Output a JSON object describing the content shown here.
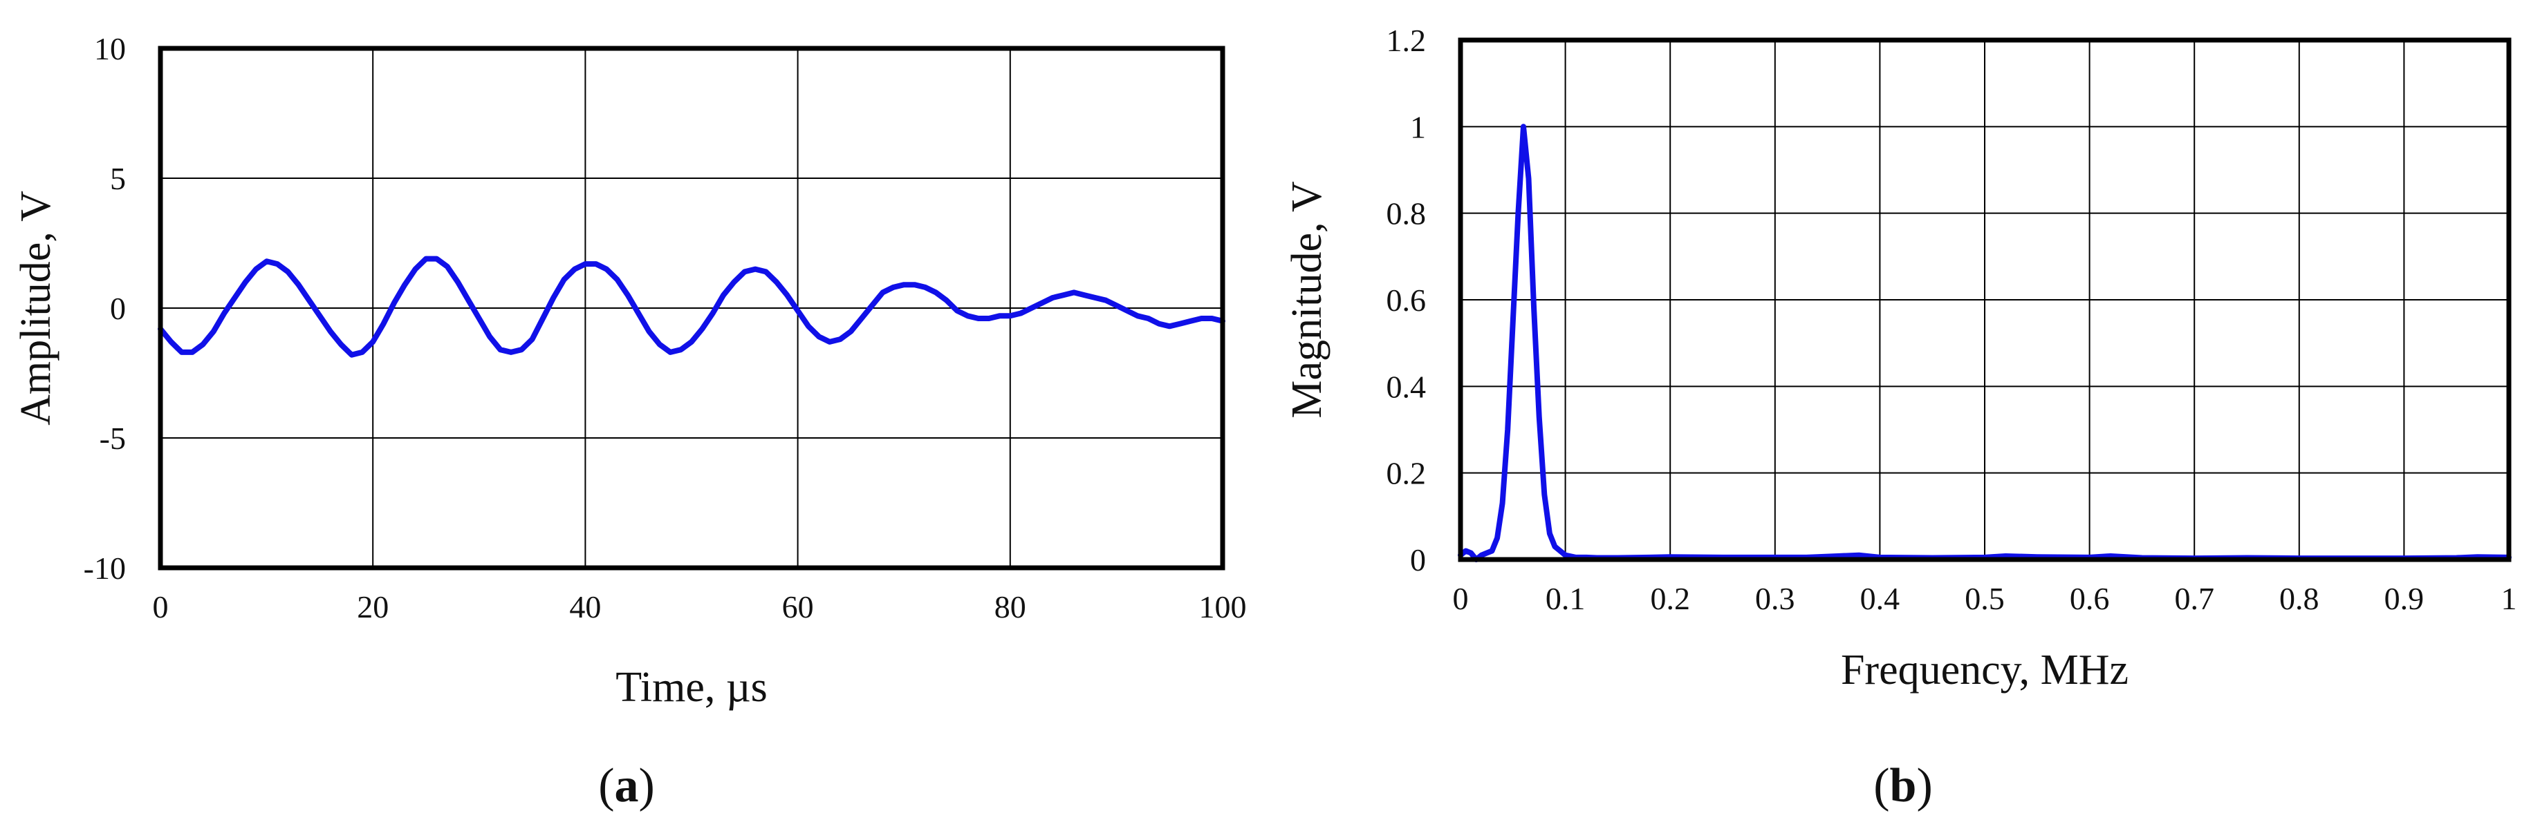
{
  "chart_data": [
    {
      "type": "line",
      "panel_label": "a",
      "title": "",
      "xlabel": "Time, µs",
      "ylabel": "Amplitude, V",
      "xlim": [
        0,
        100
      ],
      "ylim": [
        -10,
        10
      ],
      "x_ticks": [
        0,
        20,
        40,
        60,
        80,
        100
      ],
      "x_tick_labels": [
        "0",
        "20",
        "40",
        "60",
        "80",
        "100"
      ],
      "y_ticks": [
        -10,
        -5,
        0,
        5,
        10
      ],
      "y_tick_labels": [
        "-10",
        "-5",
        "0",
        "5",
        "10"
      ],
      "grid": true,
      "legend": "none",
      "series": [
        {
          "color": "#1010e8",
          "x": [
            0,
            1,
            2,
            3,
            4,
            5,
            6,
            7,
            8,
            9,
            10,
            11,
            12,
            13,
            14,
            15,
            16,
            17,
            18,
            19,
            20,
            21,
            22,
            23,
            24,
            25,
            26,
            27,
            28,
            29,
            30,
            31,
            32,
            33,
            34,
            35,
            36,
            37,
            38,
            39,
            40,
            41,
            42,
            43,
            44,
            45,
            46,
            47,
            48,
            49,
            50,
            51,
            52,
            53,
            54,
            55,
            56,
            57,
            58,
            59,
            60,
            61,
            62,
            63,
            64,
            65,
            66,
            67,
            68,
            69,
            70,
            71,
            72,
            73,
            74,
            75,
            76,
            77,
            78,
            79,
            80,
            81,
            82,
            83,
            84,
            85,
            86,
            87,
            88,
            89,
            90,
            91,
            92,
            93,
            94,
            95,
            96,
            97,
            98,
            99,
            100
          ],
          "y": [
            -0.8,
            -1.3,
            -1.7,
            -1.7,
            -1.4,
            -0.9,
            -0.2,
            0.4,
            1.0,
            1.5,
            1.8,
            1.7,
            1.4,
            0.9,
            0.3,
            -0.3,
            -0.9,
            -1.4,
            -1.8,
            -1.7,
            -1.3,
            -0.6,
            0.2,
            0.9,
            1.5,
            1.9,
            1.9,
            1.6,
            1.0,
            0.3,
            -0.4,
            -1.1,
            -1.6,
            -1.7,
            -1.6,
            -1.2,
            -0.4,
            0.4,
            1.1,
            1.5,
            1.7,
            1.7,
            1.5,
            1.1,
            0.5,
            -0.2,
            -0.9,
            -1.4,
            -1.7,
            -1.6,
            -1.3,
            -0.8,
            -0.2,
            0.5,
            1.0,
            1.4,
            1.5,
            1.4,
            1.0,
            0.5,
            -0.1,
            -0.7,
            -1.1,
            -1.3,
            -1.2,
            -0.9,
            -0.4,
            0.1,
            0.6,
            0.8,
            0.9,
            0.9,
            0.8,
            0.6,
            0.3,
            -0.1,
            -0.3,
            -0.4,
            -0.4,
            -0.3,
            -0.3,
            -0.2,
            0.0,
            0.2,
            0.4,
            0.5,
            0.6,
            0.5,
            0.4,
            0.3,
            0.1,
            -0.1,
            -0.3,
            -0.4,
            -0.6,
            -0.7,
            -0.6,
            -0.5,
            -0.4,
            -0.4,
            -0.5
          ]
        }
      ]
    },
    {
      "type": "line",
      "panel_label": "b",
      "title": "",
      "xlabel": "Frequency, MHz",
      "ylabel": "Magnitude, V",
      "xlim": [
        0,
        1
      ],
      "ylim": [
        0,
        1.2
      ],
      "x_ticks": [
        0,
        0.1,
        0.2,
        0.3,
        0.4,
        0.5,
        0.6,
        0.7,
        0.8,
        0.9,
        1
      ],
      "x_tick_labels": [
        "0",
        "0.1",
        "0.2",
        "0.3",
        "0.4",
        "0.5",
        "0.6",
        "0.7",
        "0.8",
        "0.9",
        "1"
      ],
      "y_ticks": [
        0,
        0.2,
        0.4,
        0.6,
        0.8,
        1,
        1.2
      ],
      "y_tick_labels": [
        "0",
        "0.2",
        "0.4",
        "0.6",
        "0.8",
        "1",
        "1.2"
      ],
      "grid": true,
      "legend": "none",
      "series": [
        {
          "color": "#1010e8",
          "x": [
            0,
            0.005,
            0.01,
            0.015,
            0.02,
            0.025,
            0.03,
            0.035,
            0.04,
            0.045,
            0.05,
            0.055,
            0.06,
            0.065,
            0.07,
            0.075,
            0.08,
            0.085,
            0.09,
            0.1,
            0.11,
            0.12,
            0.13,
            0.15,
            0.18,
            0.2,
            0.25,
            0.3,
            0.33,
            0.36,
            0.38,
            0.4,
            0.45,
            0.5,
            0.52,
            0.55,
            0.6,
            0.62,
            0.65,
            0.7,
            0.75,
            0.8,
            0.85,
            0.9,
            0.95,
            0.97,
            1
          ],
          "y": [
            0.01,
            0.02,
            0.015,
            0.0,
            0.01,
            0.015,
            0.02,
            0.05,
            0.13,
            0.3,
            0.55,
            0.8,
            1.0,
            0.88,
            0.58,
            0.33,
            0.15,
            0.06,
            0.03,
            0.01,
            0.005,
            0.005,
            0.004,
            0.004,
            0.005,
            0.006,
            0.005,
            0.005,
            0.005,
            0.008,
            0.01,
            0.005,
            0.004,
            0.005,
            0.008,
            0.006,
            0.005,
            0.008,
            0.004,
            0.003,
            0.004,
            0.003,
            0.003,
            0.003,
            0.004,
            0.006,
            0.005
          ]
        }
      ]
    }
  ]
}
